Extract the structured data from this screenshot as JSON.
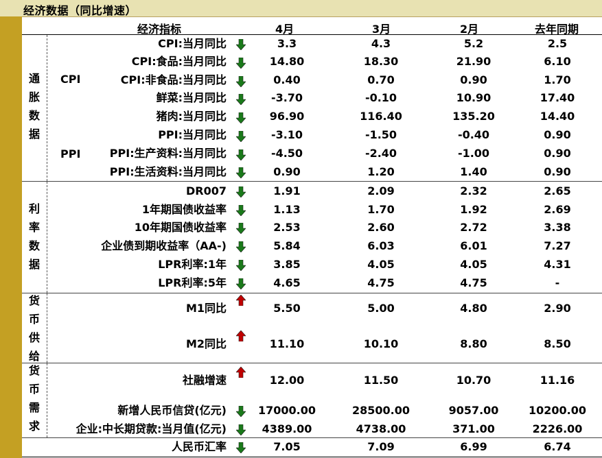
{
  "title": "经济数据（同比增速）",
  "headers": {
    "indicator": "经济指标",
    "c1": "4月",
    "c2": "3月",
    "c3": "2月",
    "c4": "去年同期"
  },
  "groups": {
    "inflation": "通胀数据",
    "rates": "利率数据",
    "money_supply": "货币供给",
    "money_demand": "货币需求"
  },
  "subgroups": {
    "cpi": "CPI",
    "ppi": "PPI"
  },
  "colors": {
    "down": "#1a7a1a",
    "up": "#c00000",
    "band": "#c4a023"
  },
  "rows": [
    {
      "label": "CPI:当月同比",
      "dir": "down",
      "v1": "3.3",
      "v2": "4.3",
      "v3": "5.2",
      "v4": "2.5"
    },
    {
      "label": "CPI:食品:当月同比",
      "dir": "down",
      "v1": "14.80",
      "v2": "18.30",
      "v3": "21.90",
      "v4": "6.10"
    },
    {
      "label": "CPI:非食品:当月同比",
      "dir": "down",
      "v1": "0.40",
      "v2": "0.70",
      "v3": "0.90",
      "v4": "1.70"
    },
    {
      "label": "鲜菜:当月同比",
      "dir": "down",
      "v1": "-3.70",
      "v2": "-0.10",
      "v3": "10.90",
      "v4": "17.40"
    },
    {
      "label": "猪肉:当月同比",
      "dir": "down",
      "v1": "96.90",
      "v2": "116.40",
      "v3": "135.20",
      "v4": "14.40"
    },
    {
      "label": "PPI:当月同比",
      "dir": "down",
      "v1": "-3.10",
      "v2": "-1.50",
      "v3": "-0.40",
      "v4": "0.90"
    },
    {
      "label": "PPI:生产资料:当月同比",
      "dir": "down",
      "v1": "-4.50",
      "v2": "-2.40",
      "v3": "-1.00",
      "v4": "0.90"
    },
    {
      "label": "PPI:生活资料:当月同比",
      "dir": "down",
      "v1": "0.90",
      "v2": "1.20",
      "v3": "1.40",
      "v4": "0.90"
    },
    {
      "label": "DR007",
      "dir": "down",
      "v1": "1.91",
      "v2": "2.09",
      "v3": "2.32",
      "v4": "2.65"
    },
    {
      "label": "1年期国债收益率",
      "dir": "down",
      "v1": "1.13",
      "v2": "1.70",
      "v3": "1.92",
      "v4": "2.69"
    },
    {
      "label": "10年期国债收益率",
      "dir": "down",
      "v1": "2.53",
      "v2": "2.60",
      "v3": "2.72",
      "v4": "3.38"
    },
    {
      "label": "企业债到期收益率（AA-)",
      "dir": "down",
      "v1": "5.84",
      "v2": "6.03",
      "v3": "6.01",
      "v4": "7.27"
    },
    {
      "label": "LPR利率:1年",
      "dir": "down",
      "v1": "3.85",
      "v2": "4.05",
      "v3": "4.05",
      "v4": "4.31"
    },
    {
      "label": "LPR利率:5年",
      "dir": "down",
      "v1": "4.65",
      "v2": "4.75",
      "v3": "4.75",
      "v4": "-"
    },
    {
      "label": "M1同比",
      "dir": "up",
      "v1": "5.50",
      "v2": "5.00",
      "v3": "4.80",
      "v4": "2.90"
    },
    {
      "label": "M2同比",
      "dir": "up",
      "v1": "11.10",
      "v2": "10.10",
      "v3": "8.80",
      "v4": "8.50"
    },
    {
      "label": "社融增速",
      "dir": "up",
      "v1": "12.00",
      "v2": "11.50",
      "v3": "10.70",
      "v4": "11.16"
    },
    {
      "label": "新增人民币信贷(亿元)",
      "dir": "down",
      "v1": "17000.00",
      "v2": "28500.00",
      "v3": "9057.00",
      "v4": "10200.00"
    },
    {
      "label": "企业:中长期贷款:当月值(亿元)",
      "dir": "down",
      "v1": "4389.00",
      "v2": "4738.00",
      "v3": "371.00",
      "v4": "2226.00"
    },
    {
      "label": "人民币汇率",
      "dir": "down",
      "v1": "7.05",
      "v2": "7.09",
      "v3": "6.99",
      "v4": "6.74"
    }
  ]
}
